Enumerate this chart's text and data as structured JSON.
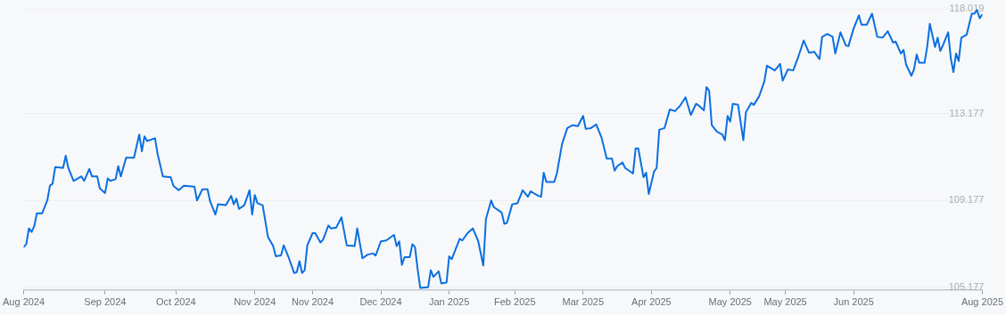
{
  "chart_data": {
    "type": "line",
    "xlim": [
      "2024-08-05",
      "2025-08-05"
    ],
    "xticks": [
      {
        "value": "2024-08-05",
        "label": "Aug 2024"
      },
      {
        "value": "2024-09-05",
        "label": "Sep 2024"
      },
      {
        "value": "2024-10-02",
        "label": "Oct 2024"
      },
      {
        "value": "2024-11-01",
        "label": "Nov 2024"
      },
      {
        "value": "2024-11-23",
        "label": "Nov 2024"
      },
      {
        "value": "2024-12-19",
        "label": "Dec 2024"
      },
      {
        "value": "2025-01-14",
        "label": "Jan 2025"
      },
      {
        "value": "2025-02-08",
        "label": "Feb 2025"
      },
      {
        "value": "2025-03-06",
        "label": "Mar 2025"
      },
      {
        "value": "2025-04-01",
        "label": "Apr 2025"
      },
      {
        "value": "2025-05-01",
        "label": "May 2025"
      },
      {
        "value": "2025-05-22",
        "label": "May 2025"
      },
      {
        "value": "2025-06-17",
        "label": "Jun 2025"
      },
      {
        "value": "2025-08-05",
        "label": "Aug 2025"
      }
    ],
    "ylim": [
      105.05,
      118.019
    ],
    "yticks": [
      105.177,
      109.177,
      113.177,
      118.019
    ],
    "grid": "y",
    "marker": "none",
    "line_style": "solid",
    "legend": false,
    "series": [
      {
        "color": "#0a6fe0",
        "x": [
          "2024-08-05",
          "2024-08-06",
          "2024-08-07",
          "2024-08-08",
          "2024-08-09",
          "2024-08-10",
          "2024-08-12",
          "2024-08-14",
          "2024-08-15",
          "2024-08-16",
          "2024-08-17",
          "2024-08-20",
          "2024-08-21",
          "2024-08-22",
          "2024-08-24",
          "2024-08-27",
          "2024-08-28",
          "2024-08-30",
          "2024-08-31",
          "2024-09-02",
          "2024-09-03",
          "2024-09-05",
          "2024-09-06",
          "2024-09-07",
          "2024-09-09",
          "2024-09-10",
          "2024-09-11",
          "2024-09-13",
          "2024-09-16",
          "2024-09-18",
          "2024-09-19",
          "2024-09-20",
          "2024-09-21",
          "2024-09-24",
          "2024-09-25",
          "2024-09-27",
          "2024-09-30",
          "2024-10-01",
          "2024-10-03",
          "2024-10-05",
          "2024-10-09",
          "2024-10-10",
          "2024-10-12",
          "2024-10-14",
          "2024-10-15",
          "2024-10-17",
          "2024-10-18",
          "2024-10-21",
          "2024-10-23",
          "2024-10-24",
          "2024-10-25",
          "2024-10-26",
          "2024-10-28",
          "2024-10-30",
          "2024-10-31",
          "2024-11-01",
          "2024-11-02",
          "2024-11-04",
          "2024-11-06",
          "2024-11-08",
          "2024-11-09",
          "2024-11-11",
          "2024-11-12",
          "2024-11-14",
          "2024-11-16",
          "2024-11-17",
          "2024-11-18",
          "2024-11-19",
          "2024-11-20",
          "2024-11-21",
          "2024-11-23",
          "2024-11-24",
          "2024-11-26",
          "2024-11-27",
          "2024-11-29",
          "2024-11-30",
          "2024-12-02",
          "2024-12-04",
          "2024-12-06",
          "2024-12-09",
          "2024-12-10",
          "2024-12-12",
          "2024-12-14",
          "2024-12-16",
          "2024-12-17",
          "2024-12-19",
          "2024-12-21",
          "2024-12-24",
          "2024-12-25",
          "2024-12-26",
          "2024-12-27",
          "2024-12-28",
          "2024-12-30",
          "2024-12-31",
          "2025-01-01",
          "2025-01-02",
          "2025-01-03",
          "2025-01-06",
          "2025-01-07",
          "2025-01-08",
          "2025-01-10",
          "2025-01-11",
          "2025-01-13",
          "2025-01-14",
          "2025-01-15",
          "2025-01-18",
          "2025-01-19",
          "2025-01-21",
          "2025-01-23",
          "2025-01-25",
          "2025-01-27",
          "2025-01-28",
          "2025-01-30",
          "2025-01-31",
          "2025-02-03",
          "2025-02-04",
          "2025-02-05",
          "2025-02-07",
          "2025-02-09",
          "2025-02-11",
          "2025-02-13",
          "2025-02-14",
          "2025-02-17",
          "2025-02-18",
          "2025-02-19",
          "2025-02-20",
          "2025-02-23",
          "2025-02-24",
          "2025-02-26",
          "2025-02-28",
          "2025-03-02",
          "2025-03-04",
          "2025-03-06",
          "2025-03-07",
          "2025-03-09",
          "2025-03-11",
          "2025-03-13",
          "2025-03-15",
          "2025-03-17",
          "2025-03-18",
          "2025-03-19",
          "2025-03-21",
          "2025-03-22",
          "2025-03-25",
          "2025-03-26",
          "2025-03-27",
          "2025-03-29",
          "2025-03-30",
          "2025-03-31",
          "2025-04-02",
          "2025-04-03",
          "2025-04-04",
          "2025-04-06",
          "2025-04-08",
          "2025-04-10",
          "2025-04-12",
          "2025-04-14",
          "2025-04-16",
          "2025-04-18",
          "2025-04-19",
          "2025-04-21",
          "2025-04-22",
          "2025-04-23",
          "2025-04-24",
          "2025-04-26",
          "2025-04-28",
          "2025-04-29",
          "2025-04-30",
          "2025-05-01",
          "2025-05-02",
          "2025-05-04",
          "2025-05-06",
          "2025-05-07",
          "2025-05-09",
          "2025-05-10",
          "2025-05-12",
          "2025-05-14",
          "2025-05-15",
          "2025-05-18",
          "2025-05-20",
          "2025-05-21",
          "2025-05-23",
          "2025-05-25",
          "2025-05-27",
          "2025-05-29",
          "2025-05-31",
          "2025-06-02",
          "2025-06-04",
          "2025-06-05",
          "2025-06-07",
          "2025-06-09",
          "2025-06-10",
          "2025-06-12",
          "2025-06-14",
          "2025-06-15",
          "2025-06-17",
          "2025-06-19",
          "2025-06-20",
          "2025-06-22",
          "2025-06-24",
          "2025-06-26",
          "2025-06-28",
          "2025-06-30",
          "2025-07-02",
          "2025-07-03",
          "2025-07-05",
          "2025-07-06",
          "2025-07-07",
          "2025-07-09",
          "2025-07-10",
          "2025-07-11",
          "2025-07-12",
          "2025-07-14",
          "2025-07-15",
          "2025-07-16",
          "2025-07-18",
          "2025-07-19",
          "2025-07-20",
          "2025-07-21",
          "2025-07-23",
          "2025-07-24",
          "2025-07-25",
          "2025-07-26",
          "2025-07-27",
          "2025-07-28",
          "2025-07-30",
          "2025-08-01",
          "2025-08-02",
          "2025-08-03",
          "2025-08-04",
          "2025-08-05"
        ],
        "values": [
          107.03,
          107.16,
          107.89,
          107.72,
          107.98,
          108.58,
          108.58,
          109.18,
          109.86,
          109.95,
          110.72,
          110.68,
          111.24,
          110.68,
          110.08,
          110.29,
          110.08,
          110.63,
          110.29,
          110.29,
          109.73,
          109.52,
          110.2,
          110.08,
          110.16,
          110.76,
          110.29,
          111.15,
          111.15,
          112.22,
          111.45,
          112.14,
          111.92,
          112.05,
          111.32,
          110.29,
          110.25,
          109.86,
          109.65,
          109.86,
          109.82,
          109.18,
          109.69,
          109.69,
          109.13,
          108.53,
          109.0,
          108.96,
          109.39,
          109.0,
          109.26,
          108.79,
          108.96,
          109.65,
          108.53,
          109.43,
          109.05,
          108.96,
          107.5,
          107.07,
          106.6,
          106.64,
          107.11,
          106.51,
          105.83,
          105.87,
          106.38,
          105.83,
          105.96,
          107.11,
          107.67,
          107.67,
          107.24,
          107.37,
          108.02,
          107.89,
          107.93,
          108.4,
          107.11,
          107.07,
          107.89,
          106.51,
          106.68,
          106.73,
          106.64,
          107.29,
          107.33,
          107.59,
          107.07,
          107.29,
          106.21,
          106.56,
          106.56,
          107.16,
          107.03,
          106.0,
          105.14,
          105.18,
          105.96,
          105.65,
          105.91,
          105.35,
          105.39,
          106.6,
          106.47,
          107.41,
          107.33,
          107.67,
          107.89,
          107.33,
          106.17,
          108.32,
          109.18,
          108.87,
          108.62,
          108.1,
          108.14,
          109.0,
          109.05,
          109.65,
          109.35,
          109.6,
          109.39,
          109.35,
          110.46,
          110.03,
          110.03,
          110.42,
          111.79,
          112.52,
          112.65,
          112.61,
          113.08,
          112.48,
          112.52,
          112.69,
          112.09,
          111.11,
          111.11,
          110.55,
          110.76,
          110.93,
          110.68,
          110.42,
          111.58,
          111.58,
          110.25,
          110.46,
          109.48,
          110.51,
          110.68,
          112.44,
          112.52,
          113.38,
          113.3,
          113.56,
          113.94,
          113.12,
          113.64,
          113.56,
          113.34,
          114.41,
          114.24,
          112.65,
          112.35,
          112.22,
          111.96,
          113.08,
          112.82,
          113.64,
          113.59,
          111.96,
          113.25,
          113.68,
          113.59,
          113.98,
          114.67,
          115.4,
          115.18,
          115.48,
          114.71,
          115.23,
          115.18,
          115.83,
          116.56,
          116.0,
          116.04,
          115.7,
          116.73,
          116.86,
          116.73,
          115.96,
          116.94,
          116.34,
          116.3,
          117.11,
          117.72,
          117.29,
          117.29,
          117.8,
          116.73,
          116.69,
          116.99,
          116.47,
          116.51,
          115.96,
          116.13,
          115.44,
          114.93,
          115.23,
          115.91,
          115.53,
          115.53,
          116.26,
          117.33,
          116.26,
          116.69,
          116.08,
          116.34,
          116.94,
          115.74,
          115.1,
          115.96,
          115.61,
          116.69,
          116.82,
          117.8,
          117.8,
          117.97,
          117.59,
          117.76
        ]
      }
    ]
  }
}
